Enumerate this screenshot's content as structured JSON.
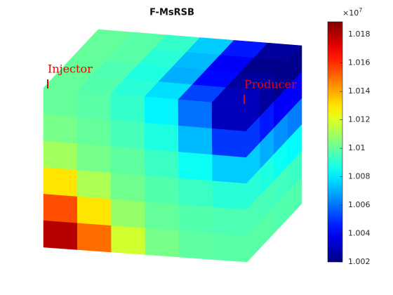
{
  "chart_data": {
    "type": "cube",
    "title": "F-MsRSB",
    "annotations": [
      "Injector",
      "Producer"
    ],
    "colorbar": {
      "multiplier": {
        "base": "×10",
        "exponent": "7"
      },
      "ylim": [
        1.002,
        1.0189
      ],
      "yticks": [
        1.002,
        1.004,
        1.006,
        1.008,
        1.01,
        1.012,
        1.014,
        1.016,
        1.018
      ],
      "colormap": "jet"
    },
    "faces": {
      "front": [
        [
          1.01,
          1.0098,
          1.0092,
          1.0082,
          1.006,
          1.003
        ],
        [
          1.0103,
          1.01,
          1.0095,
          1.0088,
          1.0072,
          1.005
        ],
        [
          1.011,
          1.0103,
          1.0099,
          1.0093,
          1.0085,
          1.0075
        ],
        [
          1.013,
          1.0112,
          1.0102,
          1.0097,
          1.0093,
          1.009
        ],
        [
          1.0155,
          1.013,
          1.0108,
          1.01,
          1.0097,
          1.0096
        ],
        [
          1.018,
          1.015,
          1.0118,
          1.0103,
          1.0099,
          1.0098
        ]
      ],
      "top": [
        [
          1.01,
          1.0098,
          1.0092,
          1.0075,
          1.0045,
          1.0025
        ],
        [
          1.01,
          1.0098,
          1.009,
          1.0072,
          1.004,
          1.0022
        ],
        [
          1.01,
          1.0096,
          1.0088,
          1.007,
          1.0042,
          1.0025
        ],
        [
          1.01,
          1.0097,
          1.009,
          1.0078,
          1.0052,
          1.003
        ]
      ],
      "side": [
        [
          1.003,
          1.0025,
          1.0022,
          1.0022
        ],
        [
          1.005,
          1.0045,
          1.004,
          1.004
        ],
        [
          1.0075,
          1.007,
          1.0065,
          1.0062
        ],
        [
          1.009,
          1.0088,
          1.0085,
          1.0083
        ],
        [
          1.0096,
          1.0095,
          1.0094,
          1.0093
        ],
        [
          1.0098,
          1.0098,
          1.0097,
          1.0097
        ]
      ]
    }
  }
}
